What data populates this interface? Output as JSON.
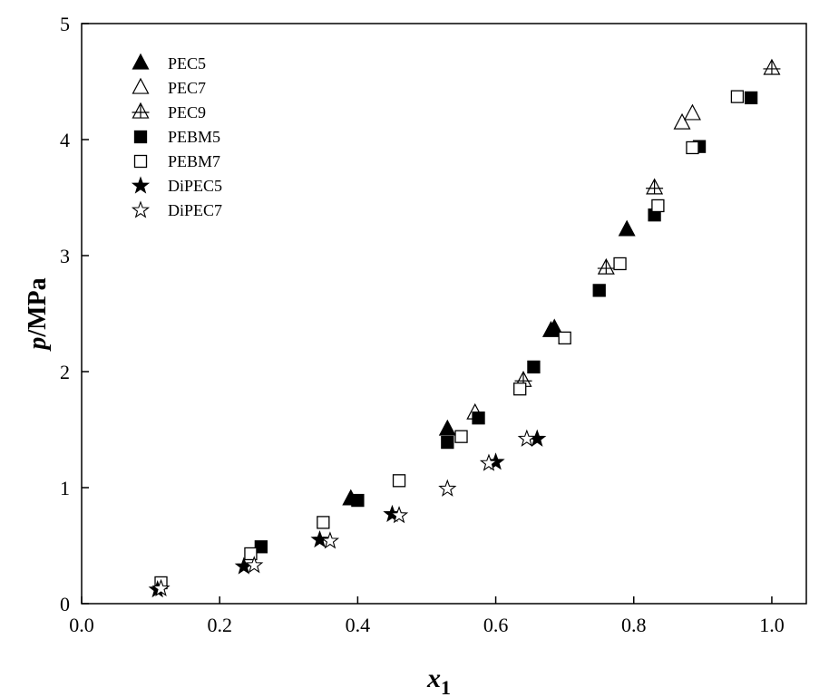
{
  "chart_data": {
    "type": "scatter",
    "title": "",
    "xlabel": {
      "main": "x",
      "sub": "1"
    },
    "ylabel": {
      "italic": "p",
      "rest": "/MPa"
    },
    "xlim": [
      0.0,
      1.05
    ],
    "ylim": [
      0,
      5
    ],
    "xticks": [
      0.0,
      0.2,
      0.4,
      0.6,
      0.8,
      1.0
    ],
    "xtick_labels": [
      "0.0",
      "0.2",
      "0.4",
      "0.6",
      "0.8",
      "1.0"
    ],
    "yticks": [
      0,
      1,
      2,
      3,
      4,
      5
    ],
    "ytick_labels": [
      "0",
      "1",
      "2",
      "3",
      "4",
      "5"
    ],
    "grid": false,
    "legend_position": "top-left",
    "series": [
      {
        "name": "PEC5",
        "marker": "triangle",
        "filled": true,
        "points": [
          [
            0.39,
            0.9
          ],
          [
            0.53,
            1.5
          ],
          [
            0.68,
            2.35
          ],
          [
            0.685,
            2.37
          ],
          [
            0.79,
            3.22
          ]
        ]
      },
      {
        "name": "PEC7",
        "marker": "triangle",
        "filled": false,
        "points": [
          [
            0.57,
            1.64
          ],
          [
            0.87,
            4.14
          ],
          [
            0.885,
            4.22
          ]
        ]
      },
      {
        "name": "PEC9",
        "marker": "triangle-cross",
        "filled": false,
        "points": [
          [
            0.64,
            1.92
          ],
          [
            0.76,
            2.89
          ],
          [
            0.83,
            3.58
          ],
          [
            1.0,
            4.61
          ]
        ]
      },
      {
        "name": "PEBM5",
        "marker": "square",
        "filled": true,
        "points": [
          [
            0.26,
            0.49
          ],
          [
            0.4,
            0.89
          ],
          [
            0.53,
            1.39
          ],
          [
            0.575,
            1.6
          ],
          [
            0.655,
            2.04
          ],
          [
            0.75,
            2.7
          ],
          [
            0.83,
            3.35
          ],
          [
            0.895,
            3.94
          ],
          [
            0.97,
            4.36
          ]
        ]
      },
      {
        "name": "PEBM7",
        "marker": "square",
        "filled": false,
        "points": [
          [
            0.115,
            0.18
          ],
          [
            0.245,
            0.43
          ],
          [
            0.35,
            0.7
          ],
          [
            0.46,
            1.06
          ],
          [
            0.55,
            1.44
          ],
          [
            0.635,
            1.85
          ],
          [
            0.7,
            2.29
          ],
          [
            0.78,
            2.93
          ],
          [
            0.835,
            3.43
          ],
          [
            0.885,
            3.93
          ],
          [
            0.95,
            4.37
          ]
        ]
      },
      {
        "name": "DiPEC5",
        "marker": "star",
        "filled": true,
        "points": [
          [
            0.11,
            0.12
          ],
          [
            0.235,
            0.32
          ],
          [
            0.345,
            0.55
          ],
          [
            0.45,
            0.77
          ],
          [
            0.6,
            1.22
          ],
          [
            0.66,
            1.42
          ]
        ]
      },
      {
        "name": "DiPEC7",
        "marker": "star",
        "filled": false,
        "points": [
          [
            0.115,
            0.13
          ],
          [
            0.25,
            0.33
          ],
          [
            0.36,
            0.54
          ],
          [
            0.46,
            0.76
          ],
          [
            0.53,
            0.99
          ],
          [
            0.59,
            1.21
          ],
          [
            0.645,
            1.42
          ]
        ]
      }
    ]
  }
}
